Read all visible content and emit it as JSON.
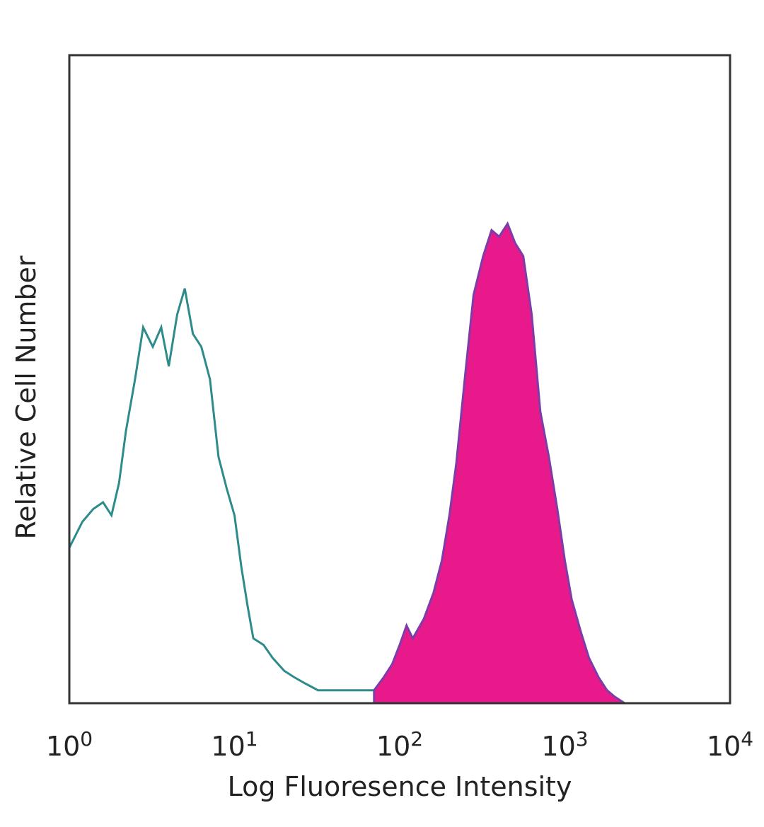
{
  "chart_data": {
    "type": "area",
    "title": "",
    "xlabel": "Log Fluoresence Intensity",
    "ylabel": "Relative Cell Number",
    "xscale": "log",
    "xlim": [
      1,
      10000
    ],
    "ylim": [
      0,
      1
    ],
    "grid": false,
    "legend": "none",
    "x_ticks": [
      {
        "base": "10",
        "exp": "0"
      },
      {
        "base": "10",
        "exp": "1"
      },
      {
        "base": "10",
        "exp": "2"
      },
      {
        "base": "10",
        "exp": "3"
      },
      {
        "base": "10",
        "exp": "4"
      }
    ],
    "series": [
      {
        "style": "outline",
        "color": "#2e8b8b",
        "x": [
          1.0,
          1.2,
          1.4,
          1.6,
          1.8,
          2.0,
          2.2,
          2.5,
          2.8,
          3.2,
          3.6,
          4.0,
          4.5,
          5.0,
          5.6,
          6.3,
          7.1,
          8.0,
          9.0,
          10,
          11,
          12,
          13,
          15,
          17,
          20,
          23,
          27,
          32,
          40,
          50,
          63,
          80
        ],
        "y": [
          0.24,
          0.28,
          0.3,
          0.31,
          0.29,
          0.34,
          0.42,
          0.5,
          0.58,
          0.55,
          0.58,
          0.52,
          0.6,
          0.64,
          0.57,
          0.55,
          0.5,
          0.38,
          0.33,
          0.29,
          0.21,
          0.15,
          0.1,
          0.09,
          0.07,
          0.05,
          0.04,
          0.03,
          0.02,
          0.02,
          0.02,
          0.02,
          0.02
        ]
      },
      {
        "style": "filled",
        "color": "#e8198a",
        "edge_color": "#7b3ea8",
        "x": [
          70,
          80,
          90,
          100,
          110,
          120,
          140,
          160,
          180,
          200,
          220,
          250,
          280,
          320,
          360,
          400,
          450,
          500,
          560,
          630,
          710,
          800,
          900,
          1000,
          1100,
          1250,
          1400,
          1600,
          1800,
          2000,
          2300
        ],
        "y": [
          0.02,
          0.04,
          0.06,
          0.09,
          0.12,
          0.1,
          0.13,
          0.17,
          0.22,
          0.29,
          0.37,
          0.51,
          0.63,
          0.69,
          0.73,
          0.72,
          0.74,
          0.71,
          0.69,
          0.6,
          0.45,
          0.38,
          0.3,
          0.22,
          0.16,
          0.11,
          0.07,
          0.04,
          0.02,
          0.01,
          0.0
        ]
      }
    ]
  }
}
